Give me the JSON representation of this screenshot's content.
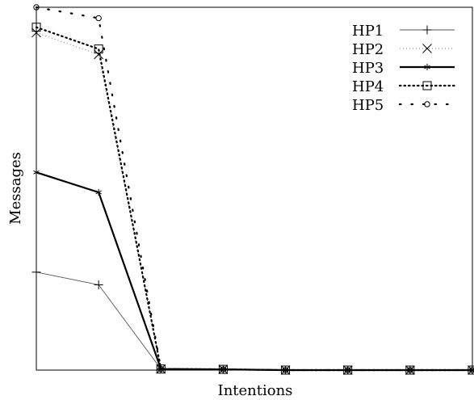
{
  "chart_data": {
    "type": "line",
    "title": "",
    "xlabel": "Intentions",
    "ylabel": "Messages",
    "x": [
      1,
      2,
      3,
      4,
      5,
      6,
      7,
      8
    ],
    "xlim": [
      1,
      8
    ],
    "ylim": [
      0,
      1.0
    ],
    "grid": false,
    "legend_position": "top-right",
    "series": [
      {
        "name": "HP1",
        "marker": "plus",
        "line_style": "solid-thin",
        "color": "#000000",
        "values": [
          0.27,
          0.235,
          0.003,
          0.002,
          0.0,
          0.0,
          0.0,
          0.0
        ]
      },
      {
        "name": "HP2",
        "marker": "cross",
        "line_style": "dotted-light",
        "color": "#000000",
        "values": [
          0.93,
          0.87,
          0.003,
          0.002,
          0.0,
          0.0,
          0.0,
          0.0
        ]
      },
      {
        "name": "HP3",
        "marker": "star",
        "line_style": "solid-thick",
        "color": "#000000",
        "values": [
          0.545,
          0.49,
          0.003,
          0.002,
          0.0,
          0.0,
          0.0,
          0.0
        ]
      },
      {
        "name": "HP4",
        "marker": "square",
        "line_style": "dotted-dense",
        "color": "#000000",
        "values": [
          0.945,
          0.885,
          0.003,
          0.002,
          0.0,
          0.0,
          0.0,
          0.0
        ]
      },
      {
        "name": "HP5",
        "marker": "circle",
        "line_style": "dotted-sparse",
        "color": "#000000",
        "values": [
          1.0,
          0.97,
          0.003,
          0.002,
          0.0,
          0.0,
          0.0,
          0.0
        ]
      }
    ]
  }
}
